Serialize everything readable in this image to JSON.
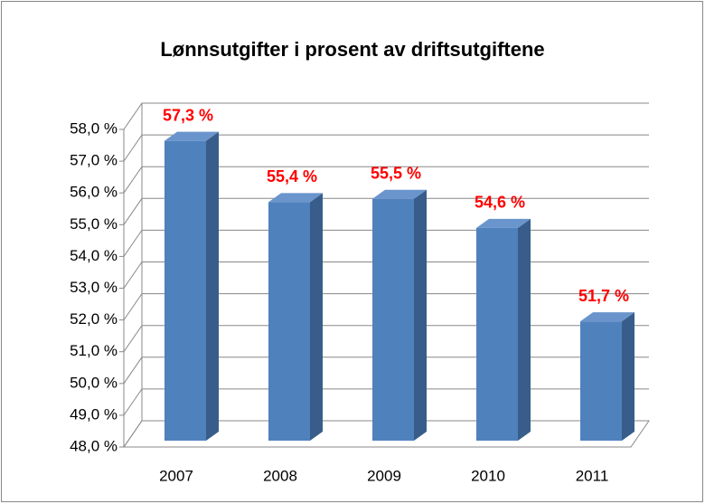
{
  "chart_data": {
    "type": "bar3d",
    "title": "Lønnsutgifter i prosent av driftsutgiftene",
    "categories": [
      "2007",
      "2008",
      "2009",
      "2010",
      "2011"
    ],
    "values": [
      57.3,
      55.4,
      55.5,
      54.6,
      51.7
    ],
    "value_labels": [
      "57,3 %",
      "55,4 %",
      "55,5 %",
      "54,6 %",
      "51,7 %"
    ],
    "color": "#4f81bd",
    "label_color": "#ff0000",
    "ylim": [
      48,
      58
    ],
    "yticks": [
      {
        "value": 48,
        "label": "48,0 %"
      },
      {
        "value": 49,
        "label": "49,0 %"
      },
      {
        "value": 50,
        "label": "50,0 %"
      },
      {
        "value": 51,
        "label": "51,0 %"
      },
      {
        "value": 52,
        "label": "52,0 %"
      },
      {
        "value": 53,
        "label": "53,0 %"
      },
      {
        "value": 54,
        "label": "54,0 %"
      },
      {
        "value": 55,
        "label": "55,0 %"
      },
      {
        "value": 56,
        "label": "56,0 %"
      },
      {
        "value": 57,
        "label": "57,0 %"
      },
      {
        "value": 58,
        "label": "58,0 %"
      }
    ],
    "grid": true
  }
}
